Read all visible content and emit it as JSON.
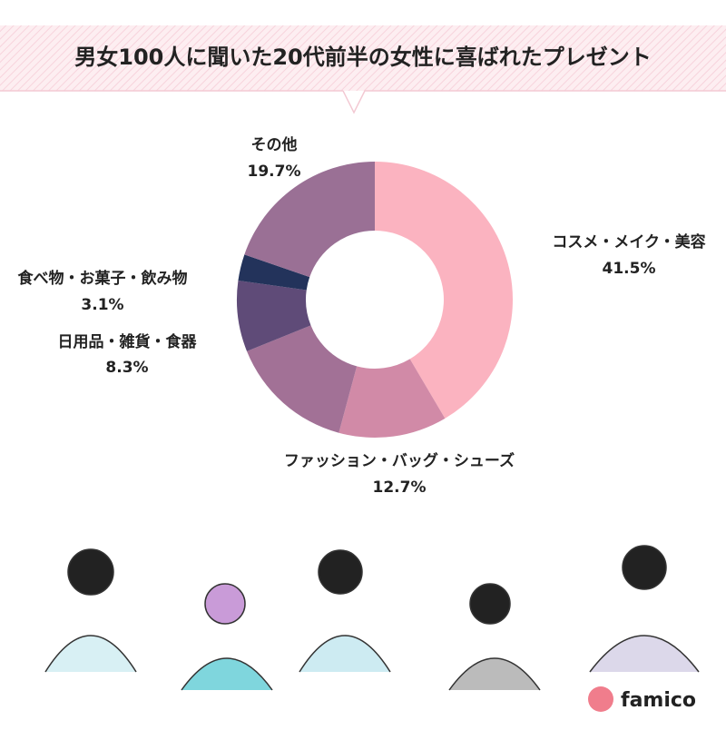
{
  "chart_data": {
    "type": "donut",
    "title": "男女100人に聞いた20代前半の女性に喜ばれたプレゼント",
    "categories": [
      "コスメ・メイク・美容",
      "ファッション・バッグ・シューズ",
      null,
      "日用品・雑貨・食器",
      "食べ物・お菓子・飲み物",
      "その他"
    ],
    "values": [
      41.5,
      12.7,
      14.7,
      8.3,
      3.1,
      19.7
    ],
    "value_labels": [
      "41.5%",
      "12.7%",
      null,
      "8.3%",
      "3.1%",
      "19.7%"
    ],
    "colors": [
      "#fbb3c0",
      "#d18aa7",
      "#a27196",
      "#5f4b78",
      "#23335b",
      "#9a7095"
    ]
  },
  "footer": {
    "logo": "famico"
  }
}
